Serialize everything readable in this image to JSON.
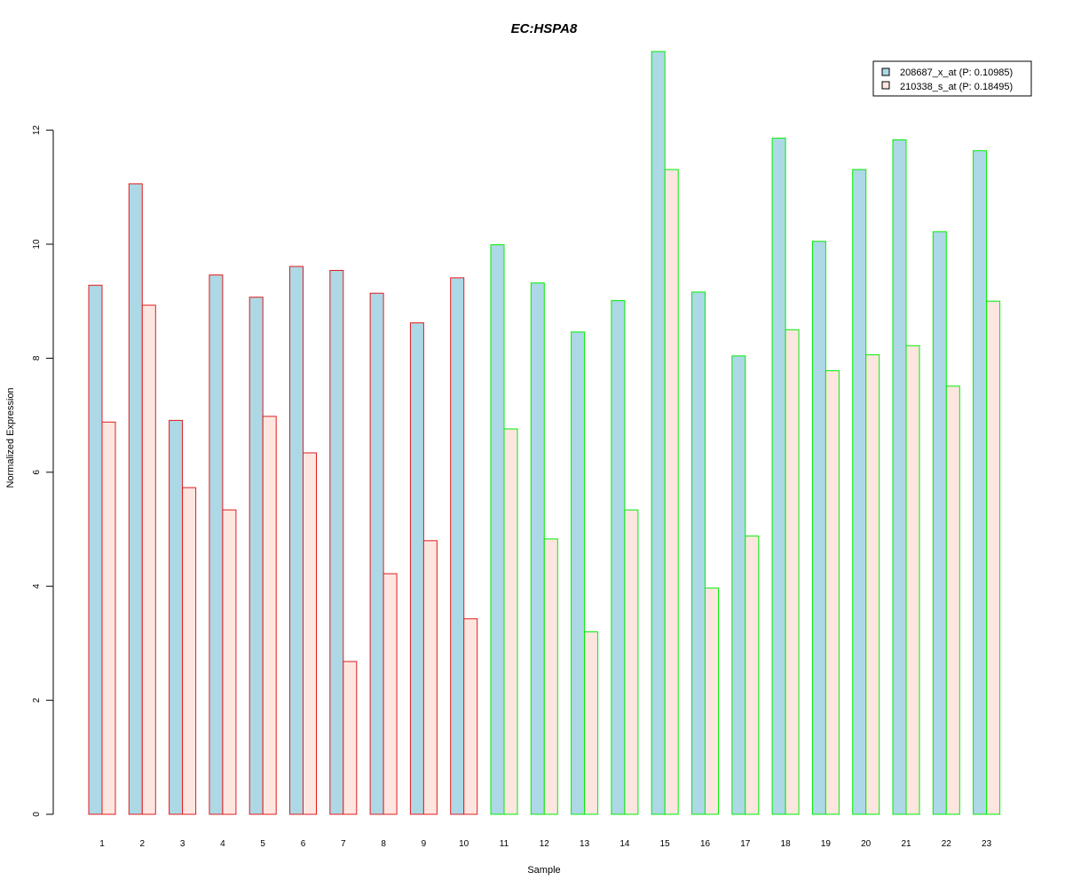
{
  "chart_data": {
    "type": "bar",
    "title": "EC:HSPA8",
    "xlabel": "Sample",
    "ylabel": "Normalized Expression",
    "ylim": [
      0,
      13.4
    ],
    "yticks": [
      0,
      2,
      4,
      6,
      8,
      10,
      12
    ],
    "grid": false,
    "legend_position": "top-right",
    "categories": [
      "1",
      "2",
      "3",
      "4",
      "5",
      "6",
      "7",
      "8",
      "9",
      "10",
      "11",
      "12",
      "13",
      "14",
      "15",
      "16",
      "17",
      "18",
      "19",
      "20",
      "21",
      "22",
      "23"
    ],
    "series": [
      {
        "name": "208687_x_at (P: 0.10985)",
        "fill": "#add8e6",
        "values": [
          9.28,
          11.06,
          6.91,
          9.46,
          9.07,
          9.61,
          9.54,
          9.14,
          8.62,
          9.41,
          9.99,
          9.32,
          8.46,
          9.01,
          13.38,
          9.16,
          8.04,
          11.86,
          10.05,
          11.31,
          11.83,
          10.22,
          11.64
        ]
      },
      {
        "name": "210338_s_at (P: 0.18495)",
        "fill": "#fde6e0",
        "values": [
          6.88,
          8.93,
          5.73,
          5.34,
          6.98,
          6.34,
          2.68,
          4.22,
          4.8,
          3.43,
          6.76,
          4.83,
          3.2,
          5.34,
          11.31,
          3.97,
          4.88,
          8.5,
          7.78,
          8.06,
          8.22,
          7.51,
          9.0
        ]
      }
    ],
    "group_border_colors": [
      "#e31a1c",
      "#e31a1c",
      "#e31a1c",
      "#e31a1c",
      "#e31a1c",
      "#e31a1c",
      "#e31a1c",
      "#e31a1c",
      "#e31a1c",
      "#e31a1c",
      "#00ee00",
      "#00ee00",
      "#00ee00",
      "#00ee00",
      "#00ee00",
      "#00ee00",
      "#00ee00",
      "#00ee00",
      "#00ee00",
      "#00ee00",
      "#00ee00",
      "#00ee00",
      "#00ee00"
    ],
    "title_color": "#0000cd"
  }
}
